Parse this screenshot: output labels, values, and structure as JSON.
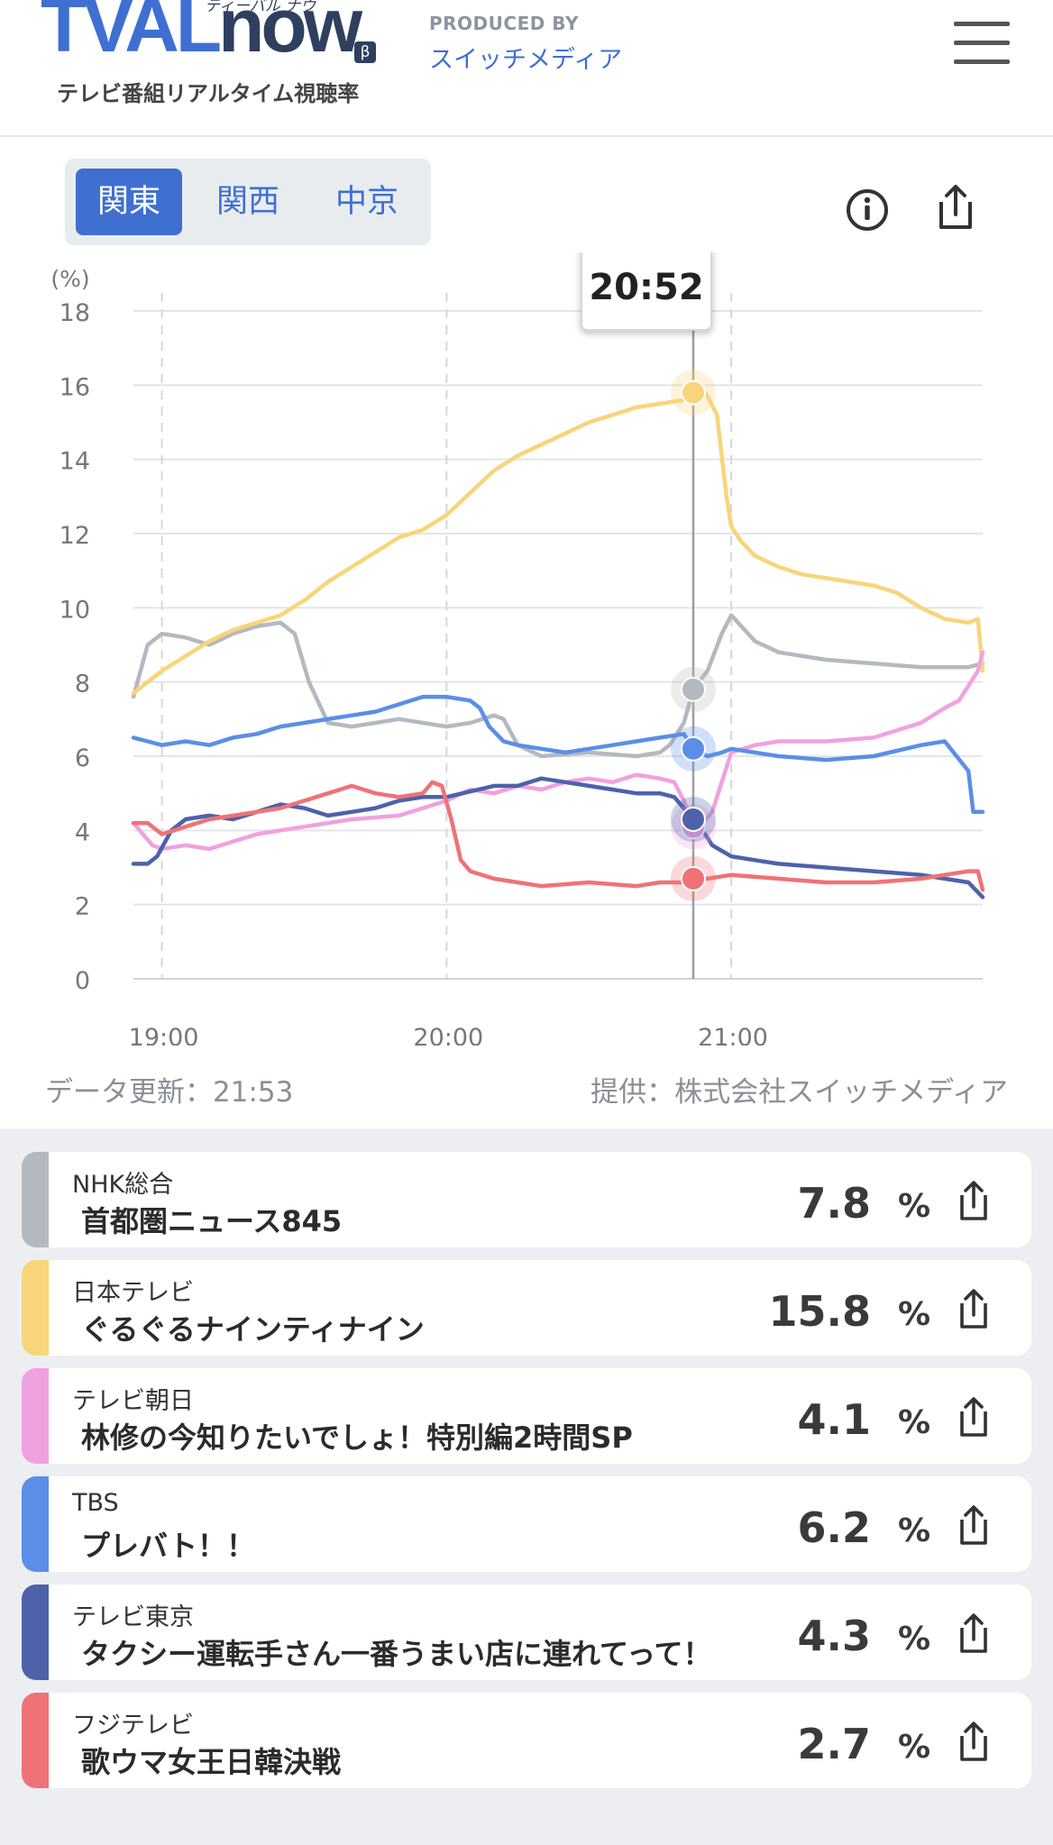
{
  "header": {
    "logo": {
      "tv": "TVAL",
      "now": "now",
      "kana": "ティーバル ナウ",
      "beta": "β",
      "tagline": "テレビ番組リアルタイム視聴率"
    },
    "produced_by": "PRODUCED BY",
    "producer": "スイッチメディア",
    "menu_icon": "hamburger-menu-icon"
  },
  "region_tabs": [
    {
      "label": "関東",
      "active": true
    },
    {
      "label": "関西",
      "active": false
    },
    {
      "label": "中京",
      "active": false
    }
  ],
  "tools": {
    "info_icon": "info-icon",
    "share_icon": "share-icon"
  },
  "chart_data": {
    "type": "line",
    "ylabel": "(%)",
    "ylim": [
      0,
      18
    ],
    "yticks": [
      "0",
      "2",
      "4",
      "6",
      "8",
      "10",
      "12",
      "14",
      "16",
      "18"
    ],
    "xticks": [
      "19:00",
      "20:00",
      "21:00"
    ],
    "tooltip_time": "20:52",
    "cursor_time": "20:52",
    "grid": true,
    "legend": "none",
    "series": [
      {
        "key": "nhk",
        "color": "#b4b9c0",
        "x": [
          "18:54",
          "18:57",
          "19:00",
          "19:05",
          "19:10",
          "19:15",
          "19:20",
          "19:25",
          "19:28",
          "19:31",
          "19:35",
          "19:40",
          "19:50",
          "20:00",
          "20:05",
          "20:10",
          "20:12",
          "20:15",
          "20:20",
          "20:30",
          "20:40",
          "20:45",
          "20:47",
          "20:50",
          "20:52",
          "20:55",
          "20:58",
          "21:00",
          "21:05",
          "21:10",
          "21:20",
          "21:30",
          "21:40",
          "21:50",
          "21:53"
        ],
        "y": [
          7.6,
          9,
          9.3,
          9.2,
          9,
          9.3,
          9.5,
          9.6,
          9.3,
          8,
          6.9,
          6.8,
          7,
          6.8,
          6.9,
          7.1,
          7,
          6.3,
          6,
          6.1,
          6,
          6.1,
          6.3,
          6.9,
          7.8,
          8.3,
          9.3,
          9.8,
          9.1,
          8.8,
          8.6,
          8.5,
          8.4,
          8.4,
          8.5
        ]
      },
      {
        "key": "ntv",
        "color": "#f8d57a",
        "x": [
          "18:54",
          "18:57",
          "19:00",
          "19:05",
          "19:10",
          "19:15",
          "19:20",
          "19:25",
          "19:30",
          "19:35",
          "19:40",
          "19:45",
          "19:50",
          "19:55",
          "20:00",
          "20:05",
          "20:10",
          "20:15",
          "20:20",
          "20:25",
          "20:30",
          "20:35",
          "20:40",
          "20:45",
          "20:50",
          "20:52",
          "20:54",
          "20:55",
          "20:57",
          "20:59",
          "21:00",
          "21:02",
          "21:05",
          "21:10",
          "21:15",
          "21:20",
          "21:25",
          "21:30",
          "21:35",
          "21:40",
          "21:45",
          "21:50",
          "21:52",
          "21:53"
        ],
        "y": [
          7.7,
          8,
          8.3,
          8.7,
          9.1,
          9.4,
          9.6,
          9.8,
          10.2,
          10.7,
          11.1,
          11.5,
          11.9,
          12.1,
          12.5,
          13.1,
          13.7,
          14.1,
          14.4,
          14.7,
          15,
          15.2,
          15.4,
          15.5,
          15.6,
          15.8,
          15.9,
          15.7,
          15.2,
          13,
          12.2,
          11.8,
          11.4,
          11.1,
          10.9,
          10.8,
          10.7,
          10.6,
          10.4,
          10,
          9.7,
          9.6,
          9.7,
          8.3
        ]
      },
      {
        "key": "ex",
        "color": "#f0a1e0",
        "x": [
          "18:54",
          "18:58",
          "19:00",
          "19:05",
          "19:10",
          "19:15",
          "19:20",
          "19:25",
          "19:30",
          "19:35",
          "19:40",
          "19:50",
          "20:00",
          "20:05",
          "20:10",
          "20:15",
          "20:20",
          "20:25",
          "20:30",
          "20:35",
          "20:40",
          "20:45",
          "20:48",
          "20:50",
          "20:52",
          "20:54",
          "20:56",
          "21:00",
          "21:05",
          "21:10",
          "21:20",
          "21:30",
          "21:40",
          "21:45",
          "21:48",
          "21:50",
          "21:52",
          "21:53"
        ],
        "y": [
          4.2,
          3.6,
          3.5,
          3.6,
          3.5,
          3.7,
          3.9,
          4,
          4.1,
          4.2,
          4.3,
          4.4,
          4.8,
          5.1,
          5,
          5.2,
          5.1,
          5.3,
          5.4,
          5.3,
          5.5,
          5.4,
          5.3,
          4.8,
          4.1,
          4.2,
          4.5,
          6.1,
          6.3,
          6.4,
          6.4,
          6.5,
          6.9,
          7.3,
          7.5,
          7.9,
          8.3,
          8.8
        ]
      },
      {
        "key": "tbs",
        "color": "#5b8ee6",
        "x": [
          "18:54",
          "18:57",
          "19:00",
          "19:05",
          "19:10",
          "19:15",
          "19:20",
          "19:25",
          "19:30",
          "19:35",
          "19:40",
          "19:45",
          "19:50",
          "19:55",
          "20:00",
          "20:05",
          "20:07",
          "20:09",
          "20:12",
          "20:15",
          "20:20",
          "20:25",
          "20:30",
          "20:35",
          "20:40",
          "20:45",
          "20:50",
          "20:52",
          "20:55",
          "20:58",
          "21:00",
          "21:10",
          "21:20",
          "21:30",
          "21:40",
          "21:45",
          "21:50",
          "21:51",
          "21:53"
        ],
        "y": [
          6.5,
          6.4,
          6.3,
          6.4,
          6.3,
          6.5,
          6.6,
          6.8,
          6.9,
          7,
          7.1,
          7.2,
          7.4,
          7.6,
          7.6,
          7.5,
          7.3,
          6.8,
          6.4,
          6.3,
          6.2,
          6.1,
          6.2,
          6.3,
          6.4,
          6.5,
          6.6,
          6.2,
          6.0,
          6.1,
          6.2,
          6.0,
          5.9,
          6.0,
          6.3,
          6.4,
          5.6,
          4.5,
          4.5
        ]
      },
      {
        "key": "tx",
        "color": "#4d62aa",
        "x": [
          "18:54",
          "18:57",
          "18:59",
          "19:02",
          "19:05",
          "19:10",
          "19:15",
          "19:20",
          "19:25",
          "19:30",
          "19:35",
          "19:40",
          "19:45",
          "19:50",
          "19:55",
          "20:00",
          "20:10",
          "20:15",
          "20:20",
          "20:25",
          "20:30",
          "20:35",
          "20:40",
          "20:45",
          "20:48",
          "20:50",
          "20:52",
          "20:54",
          "20:56",
          "21:00",
          "21:05",
          "21:10",
          "21:20",
          "21:30",
          "21:40",
          "21:45",
          "21:50",
          "21:53"
        ],
        "y": [
          3.1,
          3.1,
          3.3,
          4,
          4.3,
          4.4,
          4.3,
          4.5,
          4.7,
          4.6,
          4.4,
          4.5,
          4.6,
          4.8,
          4.9,
          4.9,
          5.2,
          5.2,
          5.4,
          5.3,
          5.2,
          5.1,
          5.0,
          5.0,
          4.9,
          4.6,
          4.3,
          4.0,
          3.6,
          3.3,
          3.2,
          3.1,
          3.0,
          2.9,
          2.8,
          2.7,
          2.6,
          2.2
        ]
      },
      {
        "key": "cx",
        "color": "#ef7277",
        "x": [
          "18:54",
          "18:57",
          "19:00",
          "19:05",
          "19:10",
          "19:15",
          "19:20",
          "19:25",
          "19:30",
          "19:35",
          "19:40",
          "19:45",
          "19:50",
          "19:55",
          "19:57",
          "19:59",
          "20:01",
          "20:03",
          "20:05",
          "20:10",
          "20:20",
          "20:30",
          "20:40",
          "20:45",
          "20:50",
          "20:52",
          "20:55",
          "21:00",
          "21:10",
          "21:20",
          "21:30",
          "21:40",
          "21:45",
          "21:50",
          "21:52",
          "21:53"
        ],
        "y": [
          4.2,
          4.2,
          3.9,
          4.1,
          4.3,
          4.4,
          4.5,
          4.6,
          4.8,
          5,
          5.2,
          5.0,
          4.9,
          5.0,
          5.3,
          5.2,
          4.3,
          3.2,
          2.9,
          2.7,
          2.5,
          2.6,
          2.5,
          2.6,
          2.6,
          2.7,
          2.7,
          2.8,
          2.7,
          2.6,
          2.6,
          2.7,
          2.8,
          2.9,
          2.9,
          2.4
        ]
      }
    ],
    "markers": [
      {
        "key": "ntv",
        "value": 15.8
      },
      {
        "key": "nhk",
        "value": 7.8
      },
      {
        "key": "tbs",
        "value": 6.2
      },
      {
        "key": "ex",
        "value": 4.1
      },
      {
        "key": "tx",
        "value": 4.3
      },
      {
        "key": "cx",
        "value": 2.7
      }
    ]
  },
  "footer": {
    "updated": "データ更新：21:53",
    "provider": "提供：株式会社スイッチメディア"
  },
  "programs": [
    {
      "station": "NHK総合",
      "program": "首都圏ニュース845",
      "rating": "7.8",
      "unit": "%",
      "color": "#b4b9c0"
    },
    {
      "station": "日本テレビ",
      "program": "ぐるぐるナインティナイン",
      "rating": "15.8",
      "unit": "%",
      "color": "#f8d57a"
    },
    {
      "station": "テレビ朝日",
      "program": "林修の今知りたいでしょ！特別編2時間SP",
      "rating": "4.1",
      "unit": "%",
      "color": "#f0a1e0"
    },
    {
      "station": "TBS",
      "program": "プレバト！！",
      "rating": "6.2",
      "unit": "%",
      "color": "#5b8ee6"
    },
    {
      "station": "テレビ東京",
      "program": "タクシー運転手さん一番うまい店に連れてって！",
      "rating": "4.3",
      "unit": "%",
      "color": "#4d62aa"
    },
    {
      "station": "フジテレビ",
      "program": "歌ウマ女王日韓決戦",
      "rating": "2.7",
      "unit": "%",
      "color": "#ef7277"
    }
  ]
}
